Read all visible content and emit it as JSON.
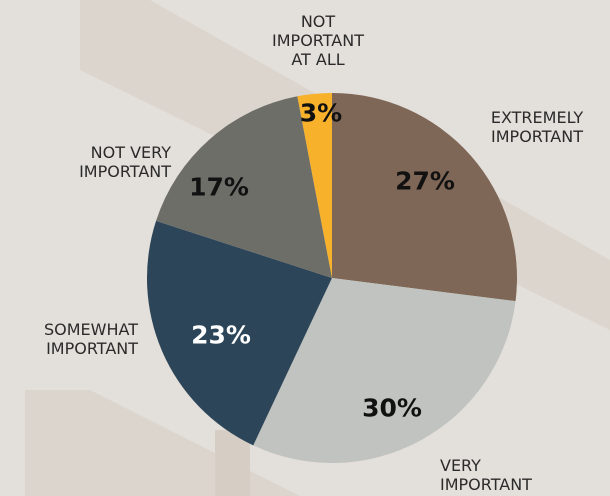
{
  "chart_data": {
    "type": "pie",
    "categories": [
      "EXTREMELY\nIMPORTANT",
      "VERY\nIMPORTANT",
      "SOMEWHAT\nIMPORTANT",
      "NOT VERY\nIMPORTANT",
      "NOT\nIMPORTANT\nAT ALL"
    ],
    "values": [
      27,
      30,
      23,
      17,
      3
    ],
    "value_labels": [
      "27%",
      "30%",
      "23%",
      "17%",
      "3%"
    ],
    "colors": [
      "#7f6757",
      "#c0c3bf",
      "#2c4558",
      "#6e6e68",
      "#f7b12a"
    ],
    "value_label_colors": [
      "#111111",
      "#111111",
      "#ffffff",
      "#111111",
      "#111111"
    ]
  }
}
